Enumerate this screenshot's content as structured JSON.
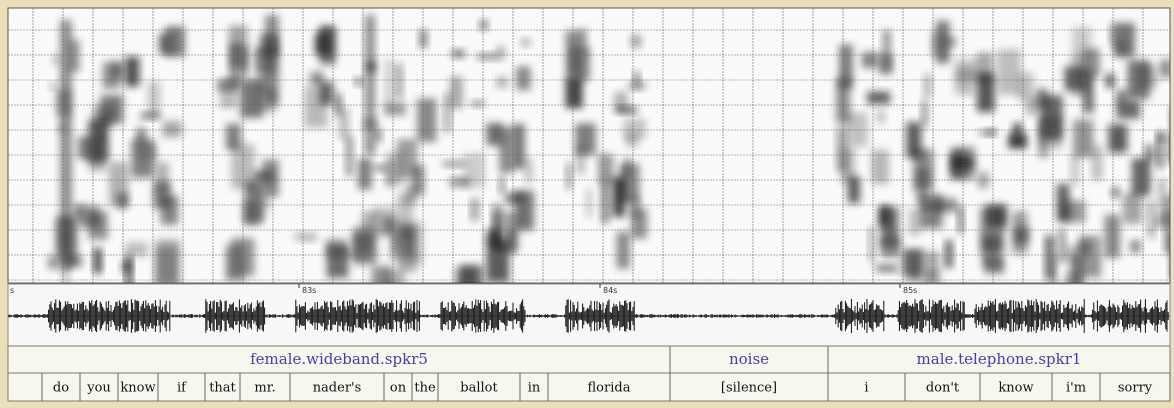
{
  "time_labels": [
    "s",
    "83s",
    "84s",
    "85s"
  ],
  "segments": [
    "female.wideband.spkr5",
    "noise",
    "male.telephone.spkr1"
  ],
  "words": [
    "do",
    "you",
    "know",
    "if",
    "that",
    "mr.",
    "nader's",
    "on",
    "the",
    "ballot",
    "in",
    "florida",
    "[silence]",
    "i",
    "don't",
    "know",
    "i'm",
    "sorry"
  ]
}
